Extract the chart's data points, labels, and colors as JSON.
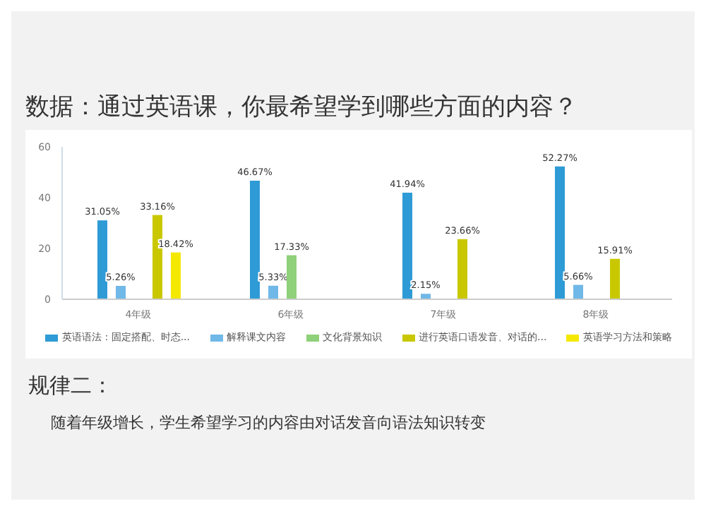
{
  "chart_data": {
    "type": "bar",
    "title": "数据：通过英语课，你最希望学到哪些方面的内容？",
    "categories": [
      "4年级",
      "6年级",
      "7年级",
      "8年级"
    ],
    "series": [
      {
        "name": "英语语法：固定搭配、时态...",
        "color": "#2e9bd6",
        "values": [
          31.05,
          46.67,
          41.94,
          52.27
        ],
        "value_labels": [
          "31.05%",
          "46.67%",
          "41.94%",
          "52.27%"
        ]
      },
      {
        "name": "解释课文内容",
        "color": "#70b8e8",
        "values": [
          5.26,
          5.33,
          2.15,
          5.66
        ],
        "value_labels": [
          "5.26%",
          "5.33%",
          "2.15%",
          "5.66%"
        ]
      },
      {
        "name": "文化背景知识",
        "color": "#8fd07a",
        "values": [
          null,
          17.33,
          null,
          null
        ],
        "value_labels": [
          null,
          "17.33%",
          null,
          null
        ]
      },
      {
        "name": "进行英语口语发音、对话的...",
        "color": "#c9c800",
        "values": [
          33.16,
          null,
          23.66,
          15.91
        ],
        "value_labels": [
          "33.16%",
          null,
          "23.66%",
          "15.91%"
        ]
      },
      {
        "name": "英语学习方法和策略",
        "color": "#f5e800",
        "values": [
          18.42,
          null,
          null,
          null
        ],
        "value_labels": [
          "18.42%",
          null,
          null,
          null
        ]
      }
    ],
    "ylim": [
      0,
      60
    ],
    "yticks": [
      0,
      20,
      40,
      60
    ],
    "grid": false,
    "legend": "bottom",
    "annotations": [
      "规律二：",
      "随着年级增长，学生希望学习的内容由对话发音向语法知识转变"
    ]
  }
}
